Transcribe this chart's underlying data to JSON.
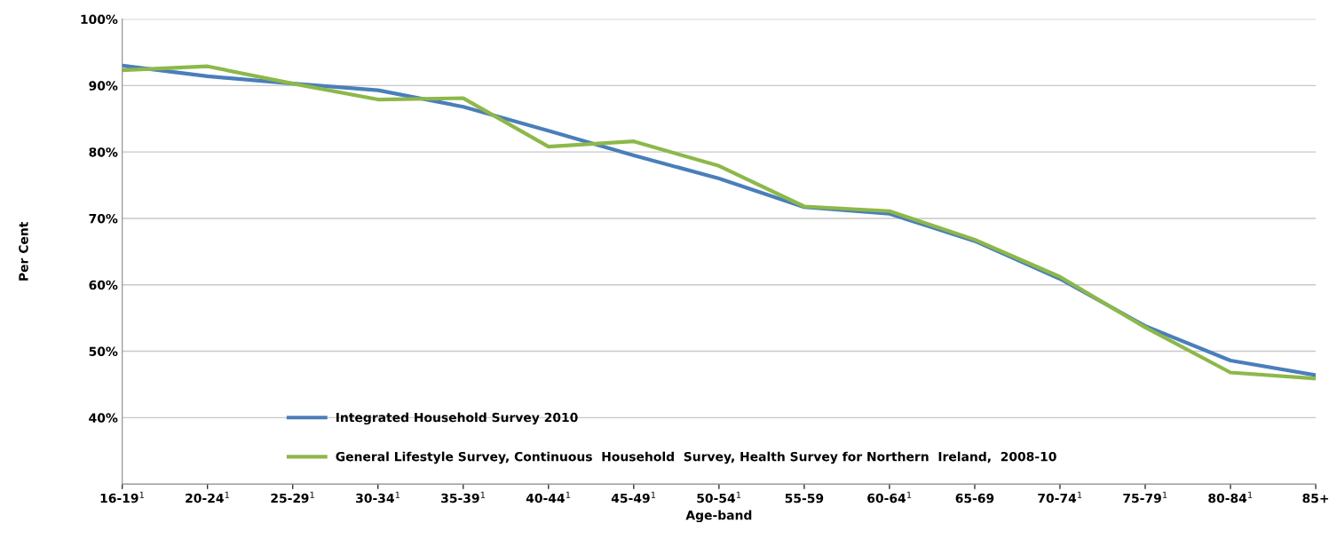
{
  "chart_data": {
    "type": "line",
    "xlabel": "Age-band",
    "ylabel": "Per Cent",
    "categories": [
      "16-19$^{1}$",
      "20-24$^{1}$",
      "25-29$^{1}$",
      "30-34$^{1}$",
      "35-39$^{1}$",
      "40-44$^{1}$",
      "45-49$^{1}$",
      "50-54$^{1}$",
      "55-59",
      "60-64$^{1}$",
      "65-69",
      "70-74$^{1}$",
      "75-79$^{1}$",
      "80-84$^{1}$",
      "85+"
    ],
    "series": [
      {
        "name": "Integrated Household Survey 2010",
        "color": "#4a7ebb",
        "values": [
          93.0,
          91.4,
          90.3,
          89.3,
          86.8,
          83.2,
          79.5,
          76.0,
          71.7,
          70.7,
          66.6,
          60.9,
          53.8,
          48.6,
          46.4
        ]
      },
      {
        "name": "General Lifestyle Survey, Continuous  Household  Survey, Health Survey for Northern  Ireland,  2008-10",
        "color": "#8db84a",
        "values": [
          92.3,
          92.9,
          90.3,
          87.9,
          88.1,
          80.8,
          81.6,
          77.9,
          71.8,
          71.1,
          66.8,
          61.2,
          53.6,
          46.8,
          45.9
        ]
      }
    ],
    "ylim": [
      30,
      100
    ],
    "yticks": [
      {
        "value": 40,
        "label": "40%"
      },
      {
        "value": 50,
        "label": "50%"
      },
      {
        "value": 60,
        "label": "60%"
      },
      {
        "value": 70,
        "label": "70%"
      },
      {
        "value": 80,
        "label": "80%"
      },
      {
        "value": 90,
        "label": "90%"
      },
      {
        "value": 100,
        "label": "100%"
      }
    ],
    "grid": "y",
    "legend": "bottom left",
    "marker": "none",
    "line_style": "solid"
  }
}
